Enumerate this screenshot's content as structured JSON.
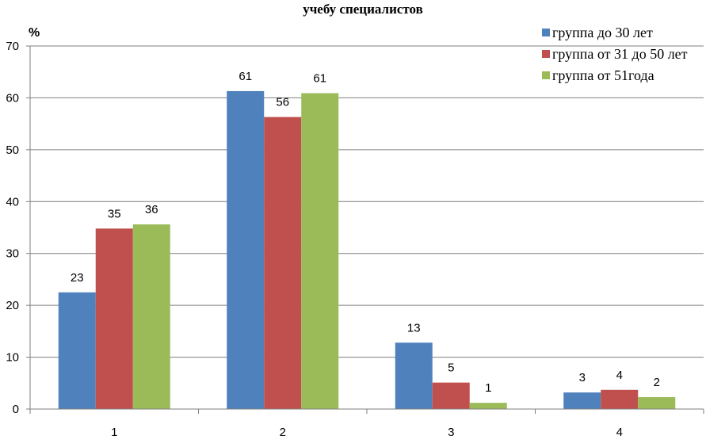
{
  "chart_data": {
    "type": "bar",
    "title": "учебу специалистов",
    "ylabel": "%",
    "xlabel": "",
    "categories": [
      "1",
      "2",
      "3",
      "4"
    ],
    "ylim": [
      0,
      70
    ],
    "yticks": [
      0,
      10,
      20,
      30,
      40,
      50,
      60,
      70
    ],
    "grid": true,
    "legend": "top-right",
    "series": [
      {
        "name": "группа до 30 лет",
        "color": "#4F81BD",
        "values": [
          22.5,
          61.3,
          12.8,
          3.2
        ],
        "labels": [
          "23",
          "61",
          "13",
          "3"
        ]
      },
      {
        "name": "группа от 31 до 50 лет",
        "color": "#C0504D",
        "values": [
          34.8,
          56.3,
          5.1,
          3.7
        ],
        "labels": [
          "35",
          "56",
          "5",
          "4"
        ]
      },
      {
        "name": "группа от 51года",
        "color": "#9BBB59",
        "values": [
          35.6,
          60.9,
          1.2,
          2.3
        ],
        "labels": [
          "36",
          "61",
          "1",
          "2"
        ]
      }
    ]
  }
}
